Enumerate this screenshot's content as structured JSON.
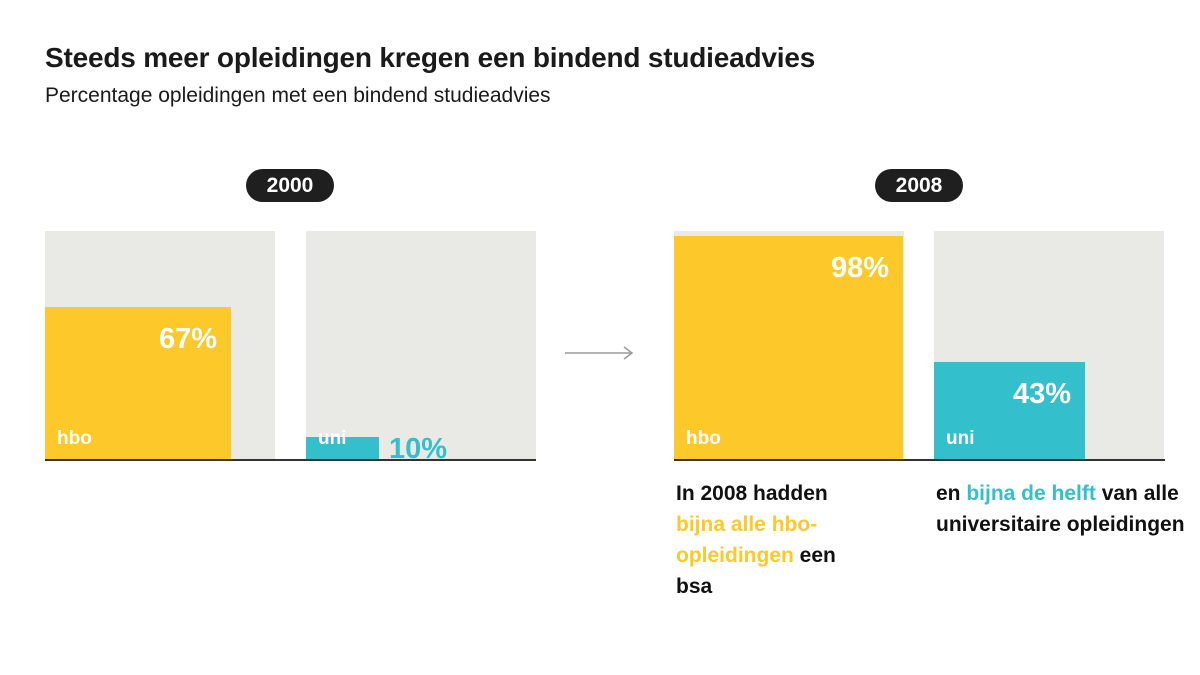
{
  "title": "Steeds meer opleidingen kregen een bindend studieadvies",
  "subtitle": "Percentage opleidingen met een  bindend studieadvies",
  "colors": {
    "hbo": "#fdc82a",
    "uni": "#33bfcb",
    "panel_bg": "#e9e9e5",
    "pill": "#1f1f1f"
  },
  "chart_data": [
    {
      "type": "bar",
      "title": "2000",
      "categories": [
        "hbo",
        "uni"
      ],
      "values": [
        67,
        10
      ],
      "labels": [
        "67%",
        "10%"
      ],
      "ylim": [
        0,
        100
      ],
      "grid": false
    },
    {
      "type": "bar",
      "title": "2008",
      "categories": [
        "hbo",
        "uni"
      ],
      "values": [
        98,
        43
      ],
      "labels": [
        "98%",
        "43%"
      ],
      "ylim": [
        0,
        100
      ],
      "grid": false
    }
  ],
  "notes": {
    "hbo": {
      "pre": "In 2008 hadden ",
      "highlight": "bijna alle hbo-opleidingen",
      "post": " een bsa"
    },
    "uni": {
      "pre": "en ",
      "highlight": "bijna de helft",
      "post": " van alle universitaire opleidingen"
    }
  }
}
